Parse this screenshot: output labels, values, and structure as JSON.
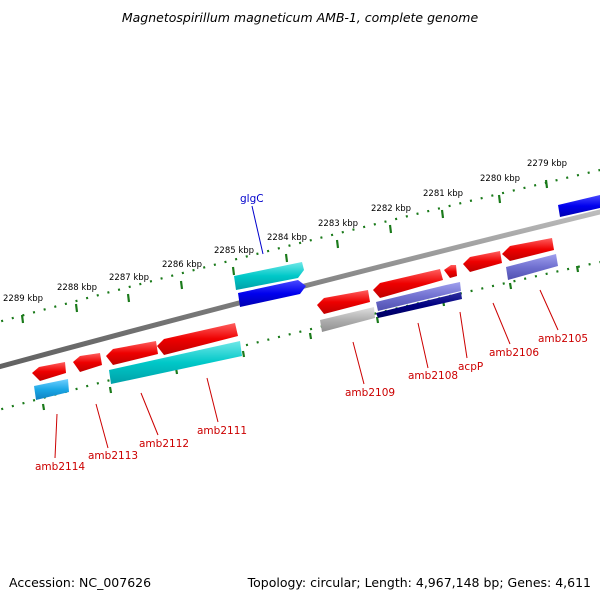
{
  "title": "Magnetospirillum magneticum AMB-1, complete genome",
  "footer": {
    "accession": "Accession: NC_007626",
    "topology": "Topology: circular; Length: 4,967,148 bp; Genes: 4,611"
  },
  "kbp_labels": [
    "2279 kbp",
    "2280 kbp",
    "2281 kbp",
    "2282 kbp",
    "2283 kbp",
    "2284 kbp",
    "2285 kbp",
    "2286 kbp",
    "2287 kbp",
    "2288 kbp",
    "2289 kbp"
  ],
  "genes_top": [
    "glgC"
  ],
  "genes_bottom": [
    "amb2105",
    "amb2106",
    "acpP",
    "amb2108",
    "amb2109",
    "amb2111",
    "amb2112",
    "amb2113",
    "amb2114"
  ],
  "colors": {
    "backbone": "#808080",
    "tick": "#1a7a1a",
    "cds_red": "#ee0000",
    "cds_blue": "#0000ee",
    "cds_cyan": "#00c8c8",
    "cds_lightblue": "#1aa7e6",
    "cds_gray": "#b0b0b0",
    "cds_purple": "#7070d0",
    "cds_navy": "#000080",
    "label_red": "#cc0000",
    "label_blue": "#0000cc"
  }
}
